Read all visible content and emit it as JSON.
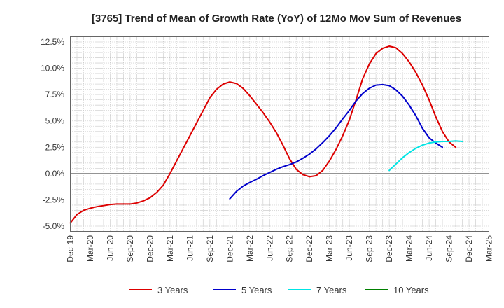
{
  "chart_data": {
    "type": "line",
    "title": "[3765]  Trend of Mean of Growth Rate (YoY) of 12Mo Mov Sum of Revenues",
    "xlabel": "",
    "ylabel": "",
    "ylim": [
      -5.5,
      13.0
    ],
    "yticks": [
      12.5,
      10.0,
      7.5,
      5.0,
      2.5,
      0.0,
      -2.5,
      -5.0
    ],
    "ytick_labels": [
      "12.5%",
      "10.0%",
      "7.5%",
      "5.0%",
      "2.5%",
      "0.0%",
      "-2.5%",
      "-5.0%"
    ],
    "x_tick_labels": [
      "Dec-19",
      "Mar-20",
      "Jun-20",
      "Sep-20",
      "Dec-20",
      "Mar-21",
      "Jun-21",
      "Sep-21",
      "Dec-21",
      "Mar-22",
      "Jun-22",
      "Sep-22",
      "Dec-22",
      "Mar-23",
      "Jun-23",
      "Sep-23",
      "Dec-23",
      "Mar-24",
      "Jun-24",
      "Sep-24",
      "Dec-24",
      "Mar-25"
    ],
    "x_start": "Dec-19",
    "x_months": 63,
    "grid": true,
    "legend_position": "bottom",
    "series": [
      {
        "name": "3 Years",
        "color": "#dd0000",
        "start_index": 0,
        "values": [
          -4.7,
          -3.9,
          -3.5,
          -3.3,
          -3.15,
          -3.05,
          -2.95,
          -2.9,
          -2.9,
          -2.9,
          -2.8,
          -2.6,
          -2.3,
          -1.8,
          -1.1,
          0.0,
          1.2,
          2.4,
          3.6,
          4.8,
          6.0,
          7.2,
          8.0,
          8.5,
          8.7,
          8.55,
          8.1,
          7.4,
          6.6,
          5.8,
          4.9,
          3.9,
          2.7,
          1.4,
          0.4,
          -0.1,
          -0.3,
          -0.2,
          0.3,
          1.2,
          2.3,
          3.6,
          5.1,
          7.0,
          9.0,
          10.4,
          11.4,
          11.9,
          12.1,
          11.95,
          11.4,
          10.6,
          9.6,
          8.4,
          7.0,
          5.4,
          4.0,
          3.0,
          2.5
        ]
      },
      {
        "name": "5 Years",
        "color": "#0000cc",
        "start_index": 24,
        "values": [
          -2.4,
          -1.7,
          -1.2,
          -0.85,
          -0.55,
          -0.2,
          0.1,
          0.4,
          0.65,
          0.85,
          1.1,
          1.45,
          1.85,
          2.35,
          2.95,
          3.6,
          4.35,
          5.2,
          6.0,
          6.9,
          7.6,
          8.1,
          8.4,
          8.45,
          8.35,
          7.95,
          7.35,
          6.5,
          5.5,
          4.3,
          3.4,
          2.9,
          2.5
        ]
      },
      {
        "name": "7 Years",
        "color": "#00e5e5",
        "start_index": 48,
        "values": [
          0.3,
          0.9,
          1.5,
          2.0,
          2.4,
          2.7,
          2.9,
          3.0,
          3.05,
          3.05,
          3.1,
          3.05
        ]
      },
      {
        "name": "10 Years",
        "color": "#008000",
        "start_index": 0,
        "values": []
      }
    ]
  }
}
